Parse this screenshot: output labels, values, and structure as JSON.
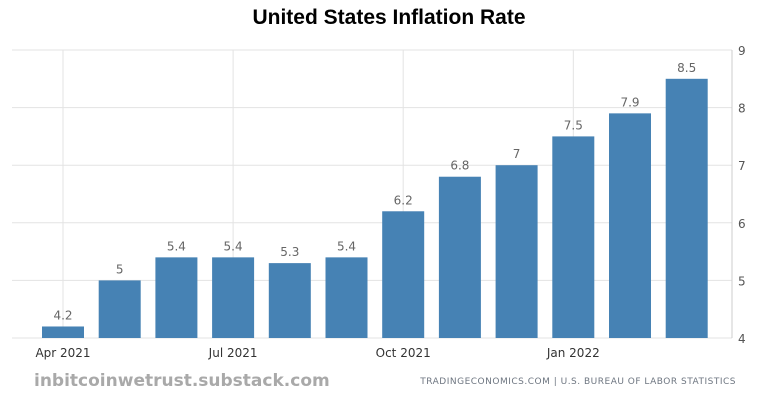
{
  "chart_data": {
    "type": "bar",
    "title": "United States Inflation Rate",
    "categories": [
      "Apr 2021",
      "May 2021",
      "Jun 2021",
      "Jul 2021",
      "Aug 2021",
      "Sep 2021",
      "Oct 2021",
      "Nov 2021",
      "Dec 2021",
      "Jan 2022",
      "Feb 2022",
      "Mar 2022"
    ],
    "values": [
      4.2,
      5,
      5.4,
      5.4,
      5.3,
      5.4,
      6.2,
      6.8,
      7,
      7.5,
      7.9,
      8.5
    ],
    "value_labels": [
      "4.2",
      "5",
      "5.4",
      "5.4",
      "5.3",
      "5.4",
      "6.2",
      "6.8",
      "7",
      "7.5",
      "7.9",
      "8.5"
    ],
    "x_tick_labels": [
      {
        "category_index": 0,
        "label": "Apr 2021"
      },
      {
        "category_index": 3,
        "label": "Jul 2021"
      },
      {
        "category_index": 6,
        "label": "Oct 2021"
      },
      {
        "category_index": 9,
        "label": "Jan 2022"
      }
    ],
    "y_ticks": [
      "4",
      "5",
      "6",
      "7",
      "8",
      "9"
    ],
    "ylim": [
      4,
      9
    ],
    "y_axis_side": "right",
    "grid": true,
    "bar_color": "#4682b4",
    "xlabel": "",
    "ylabel": ""
  },
  "watermark": "inbitcoinwetrust.substack.com",
  "source": "TRADINGECONOMICS.COM | U.S. BUREAU OF LABOR STATISTICS"
}
